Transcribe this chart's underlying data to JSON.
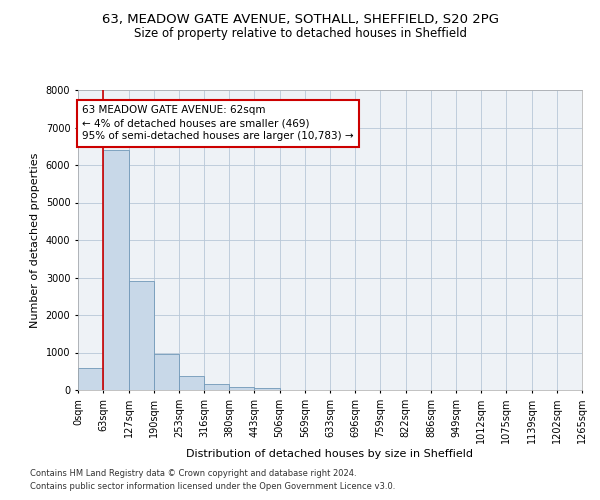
{
  "title_line1": "63, MEADOW GATE AVENUE, SOTHALL, SHEFFIELD, S20 2PG",
  "title_line2": "Size of property relative to detached houses in Sheffield",
  "xlabel": "Distribution of detached houses by size in Sheffield",
  "ylabel": "Number of detached properties",
  "footer_line1": "Contains HM Land Registry data © Crown copyright and database right 2024.",
  "footer_line2": "Contains public sector information licensed under the Open Government Licence v3.0.",
  "bin_edges": [
    0,
    63,
    127,
    190,
    253,
    316,
    380,
    443,
    506,
    569,
    633,
    696,
    759,
    822,
    886,
    949,
    1012,
    1075,
    1139,
    1202,
    1265
  ],
  "bar_heights": [
    600,
    6400,
    2920,
    970,
    370,
    150,
    80,
    55,
    0,
    0,
    0,
    0,
    0,
    0,
    0,
    0,
    0,
    0,
    0,
    0
  ],
  "bar_color": "#c8d8e8",
  "bar_edge_color": "#7098b8",
  "property_size": 62,
  "vline_color": "#cc0000",
  "annotation_text": "63 MEADOW GATE AVENUE: 62sqm\n← 4% of detached houses are smaller (469)\n95% of semi-detached houses are larger (10,783) →",
  "annotation_box_color": "#cc0000",
  "ylim": [
    0,
    8000
  ],
  "xlim": [
    0,
    1265
  ],
  "grid_color": "#b8c8d8",
  "background_color": "#eef2f6",
  "title_fontsize": 9.5,
  "subtitle_fontsize": 8.5,
  "tick_label_fontsize": 7,
  "axis_label_fontsize": 8
}
